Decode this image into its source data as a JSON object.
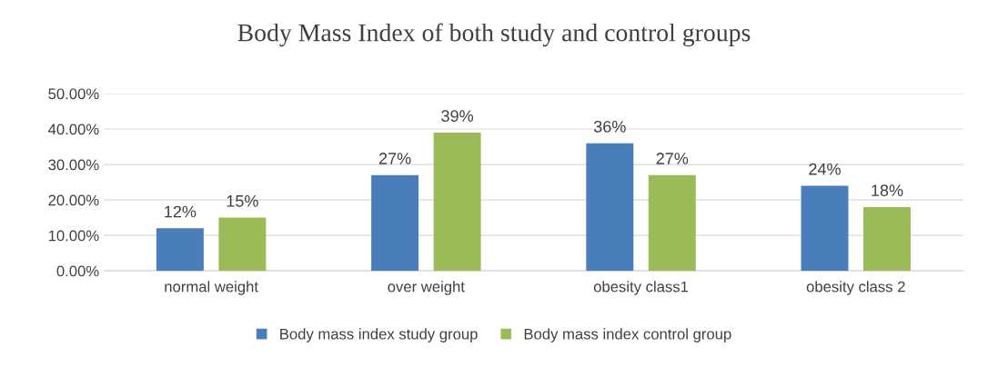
{
  "chart_data": {
    "type": "bar",
    "title": "Body Mass Index of both study and control groups",
    "categories": [
      "normal weight",
      "over weight",
      "obesity class1",
      "obesity class 2"
    ],
    "series": [
      {
        "name": "Body mass index study group",
        "color": "#4a7ebb",
        "values": [
          12,
          27,
          36,
          24
        ],
        "value_labels": [
          "12%",
          "27%",
          "36%",
          "24%"
        ]
      },
      {
        "name": "Body mass index control group",
        "color": "#9bbb59",
        "values": [
          15,
          39,
          27,
          18
        ],
        "value_labels": [
          "15%",
          "39%",
          "27%",
          "18%"
        ]
      }
    ],
    "ylim": [
      0,
      50
    ],
    "yticks": [
      {
        "value": 0,
        "label": "0.00%"
      },
      {
        "value": 10,
        "label": "10.00%"
      },
      {
        "value": 20,
        "label": "20.00%"
      },
      {
        "value": 30,
        "label": "30.00%"
      },
      {
        "value": 40,
        "label": "40.00%"
      },
      {
        "value": 50,
        "label": "50.00%"
      }
    ],
    "grid": "y",
    "legend": "bottom"
  }
}
